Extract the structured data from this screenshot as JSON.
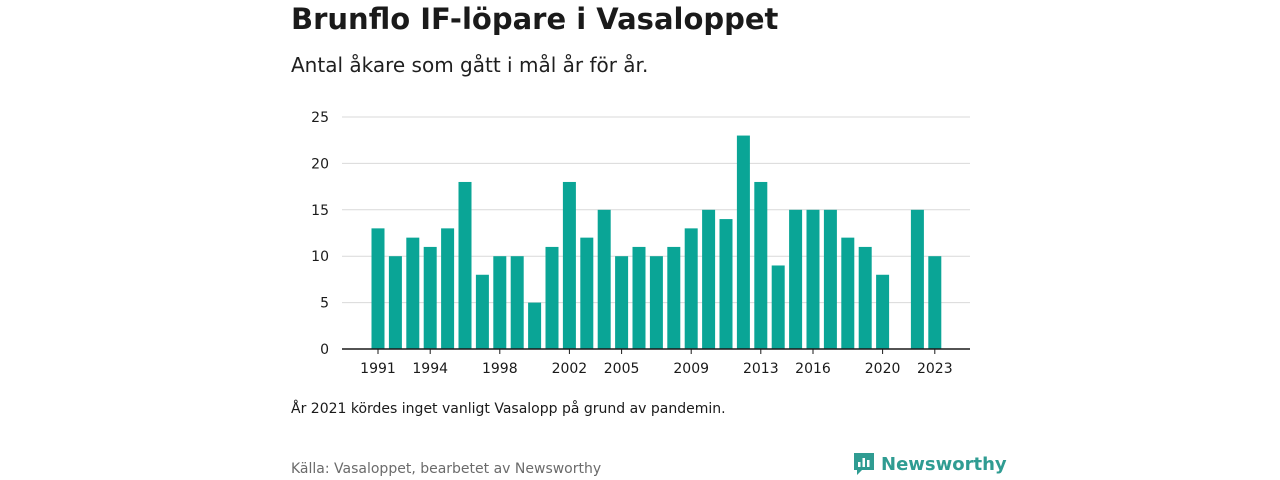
{
  "header": {
    "title": "Brunflo IF-löpare i Vasaloppet",
    "subtitle": "Antal åkare som gått i mål år för år."
  },
  "footer": {
    "note": "År 2021 kördes inget vanligt Vasalopp på grund av pandemin.",
    "source": "Källa: Vasaloppet, bearbetet av Newsworthy",
    "brand": "Newsworthy",
    "brand_icon": "newsworthy-logo-icon"
  },
  "colors": {
    "bar": "#0aa596",
    "grid": "#d9d9d9",
    "axis": "#1a1a1a",
    "brand": "#2f9c92"
  },
  "chart_data": {
    "type": "bar",
    "title": "Brunflo IF-löpare i Vasaloppet",
    "subtitle": "Antal åkare som gått i mål år för år.",
    "xlabel": "",
    "ylabel": "",
    "ylim": [
      0,
      25
    ],
    "yticks": [
      0,
      5,
      10,
      15,
      20,
      25
    ],
    "xtick_labels": [
      "1991",
      "1994",
      "1998",
      "2002",
      "2005",
      "2009",
      "2013",
      "2016",
      "2020",
      "2023"
    ],
    "grid": true,
    "legend": "none",
    "categories": [
      "1991",
      "1992",
      "1993",
      "1994",
      "1995",
      "1996",
      "1997",
      "1998",
      "1999",
      "2000",
      "2001",
      "2002",
      "2003",
      "2004",
      "2005",
      "2006",
      "2007",
      "2008",
      "2009",
      "2010",
      "2011",
      "2012",
      "2013",
      "2014",
      "2015",
      "2016",
      "2017",
      "2018",
      "2019",
      "2020",
      "2021",
      "2022",
      "2023"
    ],
    "values": [
      13,
      10,
      12,
      11,
      13,
      18,
      8,
      10,
      10,
      5,
      11,
      18,
      12,
      15,
      10,
      11,
      10,
      11,
      13,
      15,
      14,
      23,
      18,
      9,
      15,
      15,
      15,
      12,
      11,
      8,
      null,
      15,
      10
    ]
  }
}
